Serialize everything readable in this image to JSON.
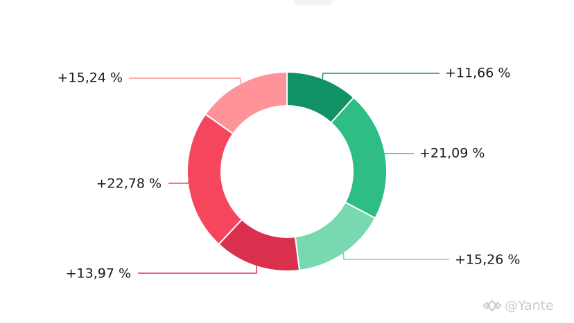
{
  "chart_data": {
    "type": "pie",
    "donut": true,
    "slices": [
      {
        "label": "+11,66 %",
        "value": 11.66,
        "color": "#119264"
      },
      {
        "label": "+21,09 %",
        "value": 21.09,
        "color": "#2ebd85"
      },
      {
        "label": "+15,26 %",
        "value": 15.26,
        "color": "#78d8b0"
      },
      {
        "label": "+13,97 %",
        "value": 13.97,
        "color": "#d9304e"
      },
      {
        "label": "+22,78 %",
        "value": 22.78,
        "color": "#f6465d"
      },
      {
        "label": "+15,24 %",
        "value": 15.24,
        "color": "#fe939a"
      }
    ],
    "start": "top",
    "direction": "clockwise",
    "legend": "none"
  },
  "watermark": {
    "text": "@Yante",
    "icon": "binance-logo-icon"
  }
}
